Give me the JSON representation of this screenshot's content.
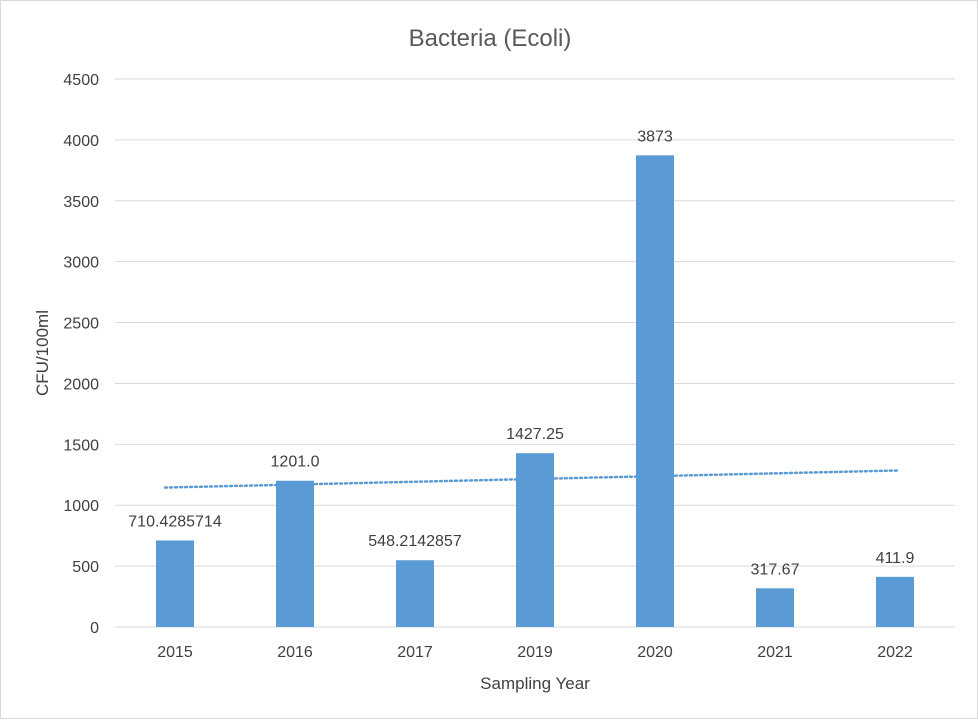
{
  "chart_data": {
    "type": "bar",
    "title": "Bacteria (Ecoli)",
    "xlabel": "Sampling Year",
    "ylabel": "CFU/100ml",
    "categories": [
      "2015",
      "2016",
      "2017",
      "2019",
      "2020",
      "2021",
      "2022"
    ],
    "values": [
      710.4285714,
      1201.0,
      548.2142857,
      1427.25,
      3873,
      317.67,
      411.9
    ],
    "data_labels": [
      "710.4285714",
      "1201.0",
      "548.2142857",
      "1427.25",
      "3873",
      "317.67",
      "411.9"
    ],
    "ylim": [
      0,
      4500
    ],
    "yticks": [
      "0",
      "500",
      "1000",
      "1500",
      "2000",
      "2500",
      "3000",
      "3500",
      "4000",
      "4500"
    ],
    "ytick_values": [
      0,
      500,
      1000,
      1500,
      2000,
      2500,
      3000,
      3500,
      4000,
      4500
    ],
    "grid": true,
    "legend": false,
    "trendline": {
      "type": "linear",
      "style": "dotted",
      "start_value": 1145,
      "end_value": 1285
    },
    "colors": {
      "bar": "#5b9bd5",
      "trendline": "#5b9bd5",
      "grid": "#d9d9d9"
    }
  }
}
